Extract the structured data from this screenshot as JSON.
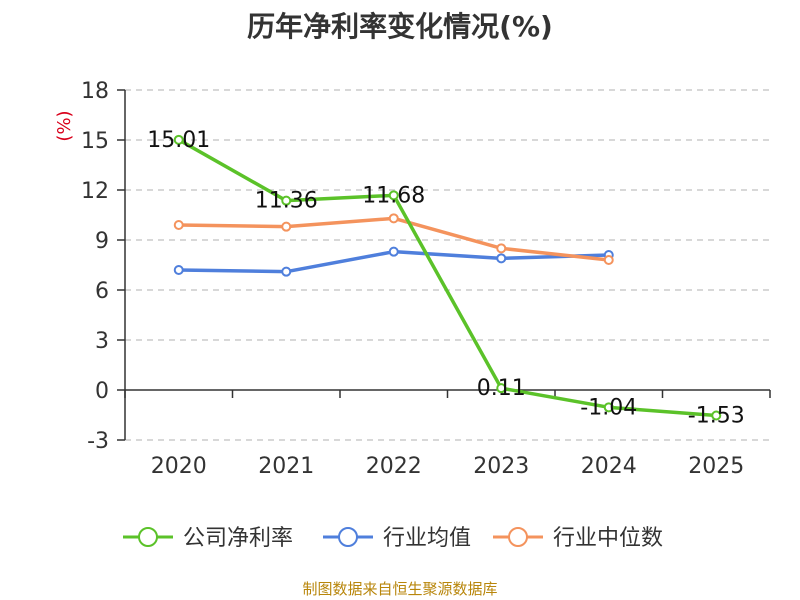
{
  "chart_data": {
    "type": "line",
    "title": "历年净利率变化情况(%)",
    "ylabel": "(%)",
    "xlabel": "",
    "categories": [
      "2020",
      "2021",
      "2022",
      "2023",
      "2024",
      "2025"
    ],
    "ylim": [
      -3,
      18
    ],
    "yticks": [
      18,
      15,
      12,
      9,
      6,
      3,
      0,
      -3
    ],
    "grid": true,
    "legend_position": "bottom",
    "series": [
      {
        "name": "公司净利率",
        "color": "#5bc229",
        "values": [
          15.01,
          11.36,
          11.68,
          0.11,
          -1.04,
          -1.53
        ],
        "labels": [
          "15.01",
          "11.36",
          "11.68",
          "0.11",
          "-1.04",
          "-1.53"
        ]
      },
      {
        "name": "行业均值",
        "color": "#4f7fdc",
        "values": [
          7.2,
          7.1,
          8.3,
          7.9,
          8.1,
          null
        ]
      },
      {
        "name": "行业中位数",
        "color": "#f4935d",
        "values": [
          9.9,
          9.8,
          10.3,
          8.5,
          7.8,
          null
        ]
      }
    ]
  },
  "source": "制图数据来自恒生聚源数据库"
}
